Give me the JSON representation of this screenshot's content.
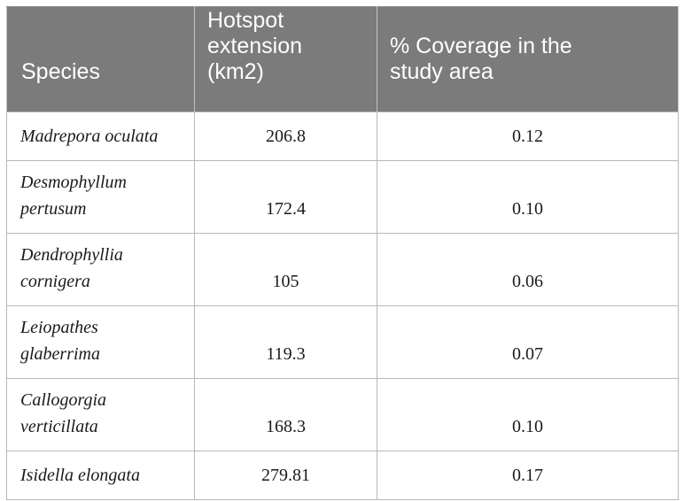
{
  "table": {
    "headers": {
      "species": "Species",
      "hotspot_line1": "Hotspot",
      "hotspot_line2": "extension",
      "hotspot_line3": "(km2)",
      "coverage_line1": "% Coverage in the",
      "coverage_line2": "study area"
    },
    "rows": [
      {
        "species_line1": "Madrepora oculata",
        "species_line2": "",
        "hotspot": "206.8",
        "coverage": "0.12"
      },
      {
        "species_line1": "Desmophyllum",
        "species_line2": "pertusum",
        "hotspot": "172.4",
        "coverage": "0.10"
      },
      {
        "species_line1": "Dendrophyllia",
        "species_line2": "cornigera",
        "hotspot": "105",
        "coverage": "0.06"
      },
      {
        "species_line1": "Leiopathes",
        "species_line2": "glaberrima",
        "hotspot": "119.3",
        "coverage": "0.07"
      },
      {
        "species_line1": "Callogorgia",
        "species_line2": "verticillata",
        "hotspot": "168.3",
        "coverage": "0.10"
      },
      {
        "species_line1": "Isidella elongata",
        "species_line2": "",
        "hotspot": "279.81",
        "coverage": "0.17"
      }
    ]
  }
}
